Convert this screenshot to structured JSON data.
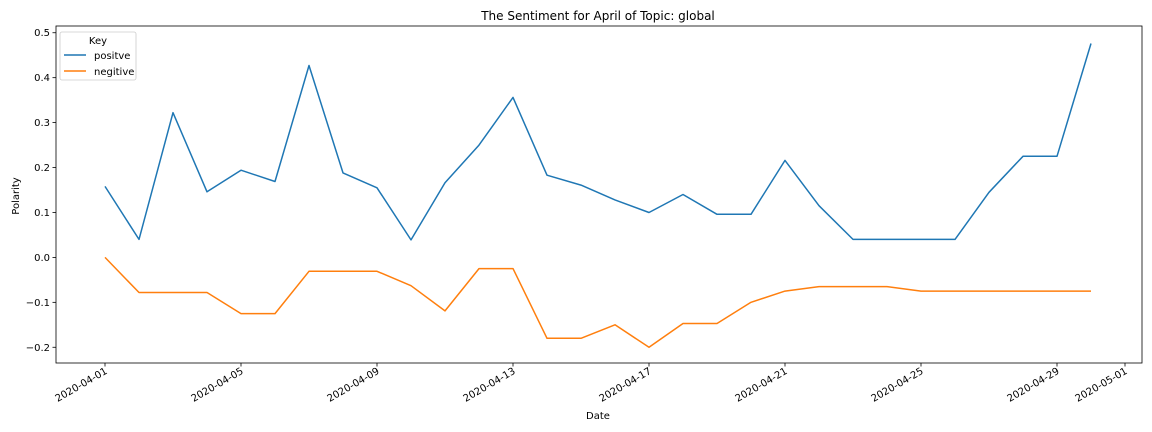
{
  "chart_data": {
    "type": "line",
    "title": "The Sentiment for April of Topic: global",
    "xlabel": "Date",
    "ylabel": "Polarity",
    "xlim": [
      "2020-04-01",
      "2020-05-01"
    ],
    "ylim": [
      -0.235,
      0.515
    ],
    "x_ticks": [
      "2020-04-01",
      "2020-04-05",
      "2020-04-09",
      "2020-04-13",
      "2020-04-17",
      "2020-04-21",
      "2020-04-25",
      "2020-04-29",
      "2020-05-01"
    ],
    "y_ticks": [
      "−0.2",
      "−0.1",
      "0.0",
      "0.1",
      "0.2",
      "0.3",
      "0.4",
      "0.5"
    ],
    "y_tick_values": [
      -0.2,
      -0.1,
      0.0,
      0.1,
      0.2,
      0.3,
      0.4,
      0.5
    ],
    "grid": false,
    "legend": {
      "title": "Key",
      "position": "top-left"
    },
    "x": [
      "2020-04-01",
      "2020-04-02",
      "2020-04-03",
      "2020-04-04",
      "2020-04-05",
      "2020-04-06",
      "2020-04-07",
      "2020-04-08",
      "2020-04-09",
      "2020-04-10",
      "2020-04-11",
      "2020-04-12",
      "2020-04-13",
      "2020-04-14",
      "2020-04-15",
      "2020-04-16",
      "2020-04-17",
      "2020-04-18",
      "2020-04-19",
      "2020-04-20",
      "2020-04-21",
      "2020-04-22",
      "2020-04-23",
      "2020-04-24",
      "2020-04-25",
      "2020-04-26",
      "2020-04-27",
      "2020-04-28",
      "2020-04-29",
      "2020-04-30"
    ],
    "series": [
      {
        "name": "positve",
        "color": "#1f77b4",
        "values": [
          0.158,
          0.04,
          0.322,
          0.146,
          0.194,
          0.169,
          0.427,
          0.188,
          0.155,
          0.039,
          0.166,
          0.25,
          0.356,
          0.183,
          0.161,
          0.128,
          0.1,
          0.14,
          0.096,
          0.096,
          0.216,
          0.115,
          0.04,
          0.04,
          0.04,
          0.04,
          0.145,
          0.225,
          0.225,
          0.476
        ]
      },
      {
        "name": "negitive",
        "color": "#ff7f0e",
        "values": [
          0.0,
          -0.078,
          -0.078,
          -0.078,
          -0.125,
          -0.125,
          -0.031,
          -0.031,
          -0.031,
          -0.063,
          -0.119,
          -0.025,
          -0.025,
          -0.18,
          -0.18,
          -0.15,
          -0.2,
          -0.147,
          -0.147,
          -0.1,
          -0.075,
          -0.065,
          -0.065,
          -0.065,
          -0.075,
          -0.075,
          -0.075,
          -0.075,
          -0.075,
          -0.075
        ]
      }
    ]
  }
}
